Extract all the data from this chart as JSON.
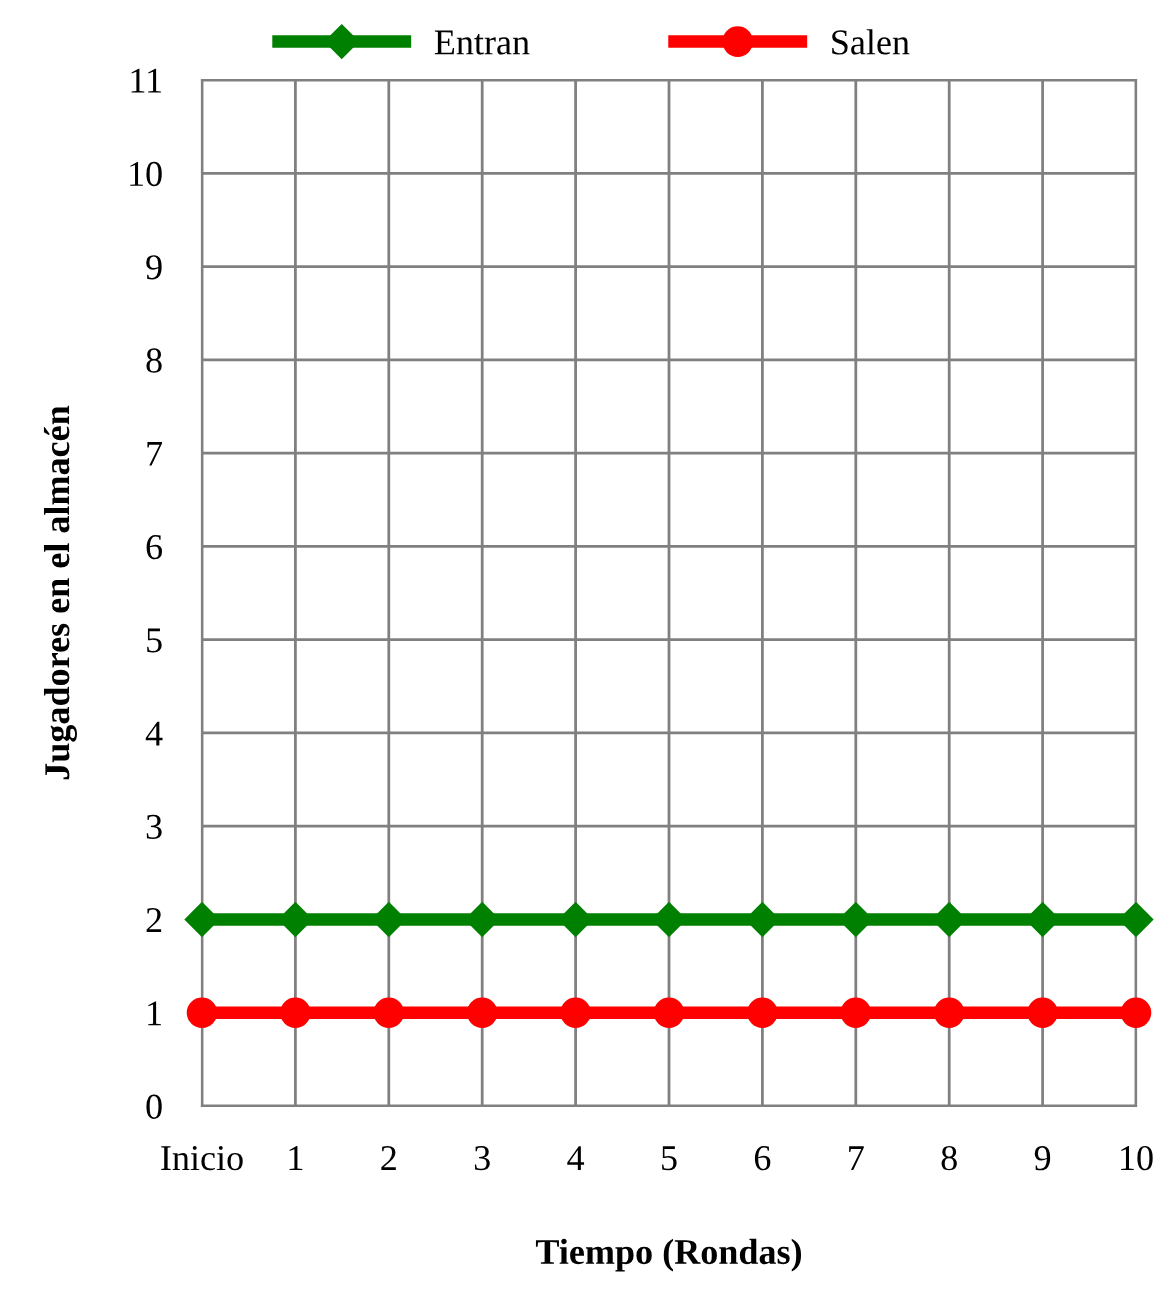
{
  "chart_data": {
    "type": "line",
    "xlabel": "Tiempo (Rondas)",
    "ylabel": "Jugadores en el almacén",
    "categories": [
      "Inicio",
      "1",
      "2",
      "3",
      "4",
      "5",
      "6",
      "7",
      "8",
      "9",
      "10"
    ],
    "series": [
      {
        "name": "Entran",
        "color": "#008000",
        "marker": "diamond",
        "values": [
          2,
          2,
          2,
          2,
          2,
          2,
          2,
          2,
          2,
          2,
          2
        ]
      },
      {
        "name": "Salen",
        "color": "#ff0000",
        "marker": "circle",
        "values": [
          1,
          1,
          1,
          1,
          1,
          1,
          1,
          1,
          1,
          1,
          1
        ]
      }
    ],
    "ylim": [
      0,
      11
    ],
    "yticks": [
      0,
      1,
      2,
      3,
      4,
      5,
      6,
      7,
      8,
      9,
      10,
      11
    ],
    "grid": true,
    "legend": "top"
  }
}
